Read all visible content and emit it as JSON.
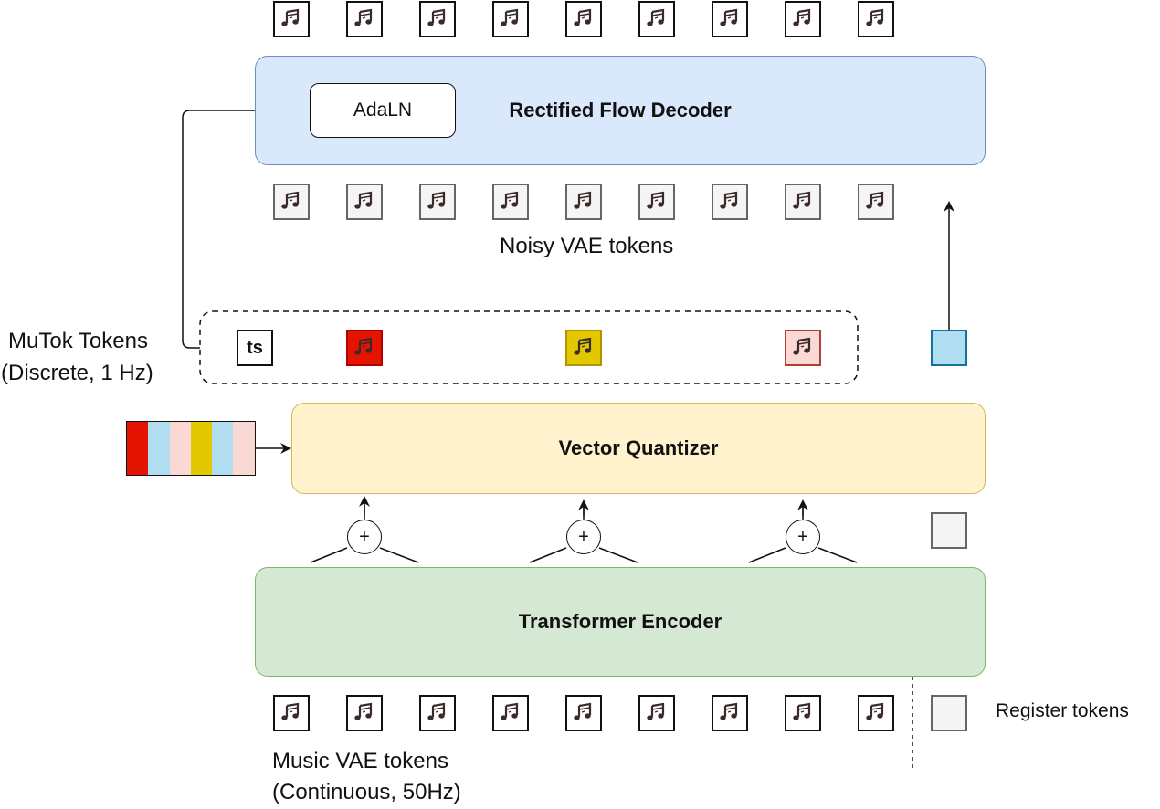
{
  "decoder": {
    "label": "Rectified Flow Decoder",
    "adaln_label": "AdaLN"
  },
  "vector_quantizer": {
    "label": "Vector Quantizer"
  },
  "encoder": {
    "label": "Transformer Encoder"
  },
  "noisy_tokens": {
    "label": "Noisy VAE tokens",
    "count": 9
  },
  "output_tokens": {
    "count": 9
  },
  "music_vae_tokens": {
    "label_line1": "Music VAE tokens",
    "label_line2": "(Continuous, 50Hz)",
    "count": 9
  },
  "mutok_tokens": {
    "label_line1": "MuTok Tokens",
    "label_line2": "(Discrete, 1 Hz)",
    "ts_label": "ts",
    "colors": [
      "#e51400",
      "#e3c800",
      "#fad9d5"
    ]
  },
  "register_tokens": {
    "label": "Register tokens"
  },
  "plus_symbol": "+",
  "codebook_colors": [
    "#e51400",
    "#b1ddf0",
    "#fad9d5",
    "#e3c800",
    "#b1ddf0",
    "#fad9d5"
  ],
  "icons": {
    "token_icon": "music-note-icon"
  }
}
